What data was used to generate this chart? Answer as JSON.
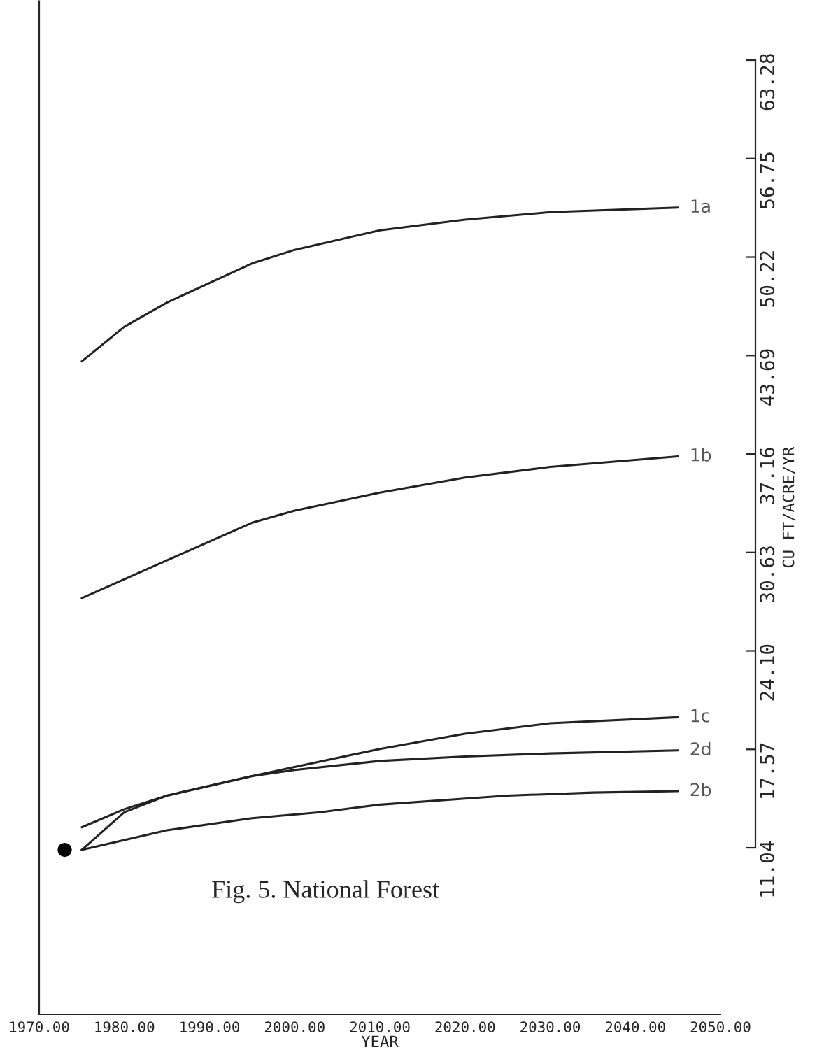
{
  "chart_data": {
    "type": "line",
    "title": "Fig. 5. National Forest",
    "xlabel": "YEAR",
    "ylabel": "CU FT/ACRE/YR",
    "series": [
      {
        "name": "1a",
        "color": "#222222",
        "x": [
          1975,
          1980,
          1985,
          1995,
          2000,
          2010,
          2020,
          2030,
          2045
        ],
        "values": [
          43.3,
          45.6,
          47.2,
          49.8,
          50.7,
          52.0,
          52.7,
          53.2,
          53.5
        ]
      },
      {
        "name": "1b",
        "color": "#222222",
        "x": [
          1975,
          1985,
          1995,
          2000,
          2010,
          2020,
          2030,
          2045
        ],
        "values": [
          27.6,
          30.1,
          32.6,
          33.4,
          34.6,
          35.6,
          36.3,
          37.0
        ]
      },
      {
        "name": "1c",
        "color": "#222222",
        "x": [
          1975,
          1980,
          1985,
          1995,
          2000,
          2010,
          2020,
          2030,
          2045
        ],
        "values": [
          10.9,
          13.4,
          14.5,
          15.8,
          16.4,
          17.6,
          18.6,
          19.3,
          19.7
        ]
      },
      {
        "name": "2d",
        "color": "#222222",
        "x": [
          1975,
          1980,
          1985,
          1995,
          2000,
          2010,
          2020,
          2030,
          2045
        ],
        "values": [
          12.4,
          13.6,
          14.5,
          15.8,
          16.2,
          16.8,
          17.1,
          17.3,
          17.5
        ]
      },
      {
        "name": "2b",
        "color": "#222222",
        "x": [
          1975,
          1985,
          1995,
          2003,
          2010,
          2020,
          2025,
          2035,
          2045
        ],
        "values": [
          10.9,
          12.2,
          13.0,
          13.4,
          13.9,
          14.3,
          14.5,
          14.7,
          14.8
        ]
      },
      {
        "type": "scatter",
        "color": "#000000",
        "marker": "circle",
        "x": [
          1973
        ],
        "values": [
          10.9
        ]
      }
    ],
    "xlim": [
      1970,
      2050
    ],
    "xticks": [
      {
        "value": 1970,
        "label": "1970.00"
      },
      {
        "value": 1980,
        "label": "1980.00"
      },
      {
        "value": 1990,
        "label": "1990.00"
      },
      {
        "value": 2000,
        "label": "2000.00"
      },
      {
        "value": 2010,
        "label": "2010.00"
      },
      {
        "value": 2020,
        "label": "2020.00"
      },
      {
        "value": 2030,
        "label": "2030.00"
      },
      {
        "value": 2040,
        "label": "2040.00"
      },
      {
        "value": 2050,
        "label": "2050.00"
      }
    ],
    "ylim": [
      0,
      67.2
    ],
    "yticks": [
      11.04,
      17.57,
      {
        "value": 24.1,
        "label": "24.10"
      },
      30.63,
      37.16,
      43.69,
      50.22,
      56.75,
      63.28
    ],
    "grid": false,
    "legend": false,
    "marker": "none",
    "line_style": "solid"
  }
}
